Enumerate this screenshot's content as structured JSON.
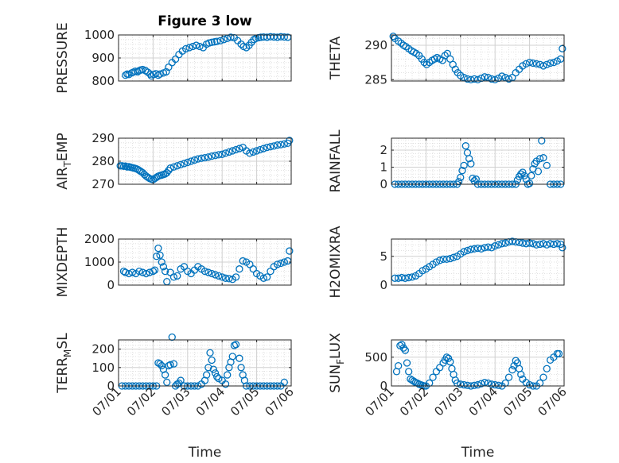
{
  "figure": {
    "title": "Figure 3 low",
    "xlabel": "Time",
    "marker_color": "#0072BD",
    "x_tick_labels": [
      "07/01",
      "07/02",
      "07/03",
      "07/04",
      "07/05",
      "07/06"
    ]
  },
  "chart_data": [
    {
      "id": "pressure",
      "type": "scatter",
      "title": "Figure 3 low",
      "ylabel": "PRESSURE",
      "ylabel_sub": "",
      "ylabel_tail": "",
      "xlabel": "",
      "xlim": [
        0,
        5
      ],
      "ylim": [
        800,
        1000
      ],
      "yticks": [
        800,
        900,
        1000
      ],
      "x": [
        0.2,
        0.25,
        0.3,
        0.38,
        0.42,
        0.48,
        0.55,
        0.6,
        0.65,
        0.7,
        0.78,
        0.85,
        0.92,
        0.95,
        1.02,
        1.08,
        1.15,
        1.2,
        1.3,
        1.38,
        1.45,
        1.55,
        1.65,
        1.75,
        1.85,
        1.95,
        2.05,
        2.15,
        2.25,
        2.35,
        2.45,
        2.55,
        2.62,
        2.7,
        2.78,
        2.85,
        2.95,
        3.05,
        3.15,
        3.25,
        3.35,
        3.45,
        3.55,
        3.62,
        3.7,
        3.78,
        3.85,
        3.92,
        3.98,
        4.05,
        4.12,
        4.2,
        4.3,
        4.4,
        4.5,
        4.6,
        4.7,
        4.8,
        4.9
      ],
      "y": [
        825,
        830,
        828,
        835,
        838,
        842,
        840,
        845,
        848,
        850,
        845,
        838,
        830,
        822,
        828,
        832,
        825,
        830,
        835,
        840,
        860,
        880,
        895,
        915,
        930,
        940,
        945,
        950,
        955,
        950,
        945,
        960,
        965,
        968,
        970,
        972,
        975,
        980,
        985,
        990,
        988,
        975,
        960,
        950,
        945,
        955,
        968,
        980,
        985,
        988,
        990,
        991,
        990,
        992,
        991,
        990,
        992,
        991,
        990
      ]
    },
    {
      "id": "theta",
      "type": "scatter",
      "ylabel": "THETA",
      "ylabel_sub": "",
      "ylabel_tail": "",
      "xlabel": "",
      "xlim": [
        0,
        5
      ],
      "ylim": [
        284.8,
        291.5
      ],
      "yticks": [
        285,
        290
      ],
      "x": [
        0.05,
        0.1,
        0.2,
        0.28,
        0.35,
        0.42,
        0.5,
        0.58,
        0.65,
        0.72,
        0.8,
        0.88,
        0.95,
        1.02,
        1.1,
        1.18,
        1.25,
        1.32,
        1.4,
        1.48,
        1.55,
        1.62,
        1.7,
        1.78,
        1.85,
        1.92,
        2.0,
        2.1,
        2.2,
        2.3,
        2.4,
        2.5,
        2.6,
        2.7,
        2.8,
        2.9,
        3.0,
        3.1,
        3.2,
        3.3,
        3.4,
        3.5,
        3.6,
        3.7,
        3.8,
        3.9,
        4.0,
        4.1,
        4.2,
        4.3,
        4.4,
        4.5,
        4.6,
        4.7,
        4.8,
        4.9,
        4.95
      ],
      "y": [
        291.3,
        291.0,
        290.6,
        290.3,
        290.0,
        289.8,
        289.5,
        289.2,
        289.0,
        288.8,
        288.5,
        288.0,
        287.5,
        287.2,
        287.5,
        287.8,
        288.0,
        288.2,
        288.0,
        287.8,
        288.5,
        288.8,
        288.0,
        287.2,
        286.5,
        286.0,
        285.6,
        285.3,
        285.1,
        285.0,
        285.1,
        285.0,
        285.2,
        285.4,
        285.3,
        285.1,
        285.0,
        285.2,
        285.5,
        285.3,
        285.1,
        285.3,
        286.0,
        286.5,
        287.0,
        287.3,
        287.5,
        287.4,
        287.3,
        287.2,
        287.0,
        287.2,
        287.4,
        287.5,
        287.7,
        288.0,
        289.5
      ]
    },
    {
      "id": "air_temp",
      "type": "scatter",
      "ylabel": "AIR",
      "ylabel_sub": "T",
      "ylabel_tail": "EMP",
      "xlabel": "",
      "xlim": [
        0,
        5
      ],
      "ylim": [
        270,
        290
      ],
      "yticks": [
        270,
        280,
        290
      ],
      "x": [
        0.05,
        0.1,
        0.15,
        0.2,
        0.25,
        0.3,
        0.35,
        0.4,
        0.45,
        0.5,
        0.55,
        0.6,
        0.65,
        0.7,
        0.75,
        0.8,
        0.85,
        0.9,
        0.95,
        1.0,
        1.05,
        1.1,
        1.15,
        1.2,
        1.25,
        1.3,
        1.35,
        1.4,
        1.45,
        1.5,
        1.6,
        1.7,
        1.8,
        1.9,
        2.0,
        2.1,
        2.2,
        2.3,
        2.4,
        2.5,
        2.6,
        2.7,
        2.8,
        2.9,
        3.0,
        3.1,
        3.2,
        3.3,
        3.4,
        3.5,
        3.6,
        3.7,
        3.8,
        3.9,
        4.0,
        4.1,
        4.2,
        4.3,
        4.4,
        4.5,
        4.6,
        4.7,
        4.8,
        4.9,
        4.95
      ],
      "y": [
        278,
        278,
        277.8,
        277.9,
        277.5,
        277.6,
        277.4,
        277.2,
        277,
        276.8,
        276.5,
        276.0,
        275.5,
        275.0,
        274.2,
        273.5,
        273.0,
        272.5,
        272.2,
        272.0,
        272.5,
        273.0,
        273.5,
        273.8,
        274.0,
        274.2,
        274.5,
        275.0,
        276.0,
        277.0,
        277.5,
        278.0,
        278.5,
        279.0,
        279.5,
        280.0,
        280.5,
        281.0,
        281.3,
        281.5,
        281.8,
        282.2,
        282.5,
        282.8,
        283.0,
        283.5,
        284.0,
        284.5,
        285.0,
        285.5,
        286.0,
        284.5,
        283.5,
        284.0,
        284.5,
        285.0,
        285.5,
        286.0,
        286.3,
        286.6,
        287.0,
        287.2,
        287.5,
        287.8,
        289.0
      ]
    },
    {
      "id": "rainfall",
      "type": "scatter",
      "ylabel": "RAINFALL",
      "ylabel_sub": "",
      "ylabel_tail": "",
      "xlabel": "",
      "xlim": [
        0,
        5
      ],
      "ylim": [
        0,
        2.7
      ],
      "yticks": [
        0,
        1,
        2
      ],
      "x": [
        0.1,
        0.2,
        0.3,
        0.4,
        0.5,
        0.6,
        0.7,
        0.8,
        0.9,
        1.0,
        1.1,
        1.2,
        1.3,
        1.4,
        1.5,
        1.6,
        1.7,
        1.8,
        1.9,
        1.95,
        2.0,
        2.05,
        2.1,
        2.15,
        2.2,
        2.25,
        2.3,
        2.35,
        2.4,
        2.45,
        2.5,
        2.6,
        2.7,
        2.8,
        2.9,
        3.0,
        3.1,
        3.2,
        3.3,
        3.4,
        3.5,
        3.6,
        3.65,
        3.7,
        3.75,
        3.8,
        3.85,
        3.9,
        3.95,
        4.0,
        4.05,
        4.1,
        4.15,
        4.2,
        4.25,
        4.3,
        4.35,
        4.4,
        4.5,
        4.6,
        4.7,
        4.8,
        4.9
      ],
      "y": [
        0,
        0,
        0,
        0,
        0,
        0,
        0,
        0,
        0,
        0,
        0,
        0,
        0,
        0,
        0,
        0,
        0,
        0,
        0,
        0.15,
        0.4,
        0.8,
        1.1,
        2.25,
        1.85,
        1.5,
        1.2,
        0.35,
        0.2,
        0.3,
        0,
        0,
        0,
        0,
        0,
        0,
        0,
        0,
        0,
        0,
        0,
        0,
        0.25,
        0.45,
        0.6,
        0.7,
        0.5,
        0.3,
        0,
        0.05,
        0.5,
        0.9,
        1.2,
        1.35,
        0.75,
        1.5,
        2.55,
        1.55,
        1.1,
        0,
        0,
        0,
        0
      ]
    },
    {
      "id": "mixdepth",
      "type": "scatter",
      "ylabel": "MIXDEPTH",
      "ylabel_sub": "",
      "ylabel_tail": "",
      "xlabel": "",
      "xlim": [
        0,
        5
      ],
      "ylim": [
        0,
        2000
      ],
      "yticks": [
        0,
        1000,
        2000
      ],
      "x": [
        0.15,
        0.2,
        0.3,
        0.4,
        0.5,
        0.6,
        0.7,
        0.8,
        0.9,
        1.0,
        1.05,
        1.1,
        1.15,
        1.2,
        1.25,
        1.3,
        1.35,
        1.4,
        1.5,
        1.6,
        1.7,
        1.8,
        1.9,
        2.0,
        2.1,
        2.2,
        2.3,
        2.4,
        2.5,
        2.6,
        2.7,
        2.8,
        2.9,
        3.0,
        3.1,
        3.2,
        3.3,
        3.4,
        3.5,
        3.6,
        3.7,
        3.8,
        3.9,
        4.0,
        4.1,
        4.2,
        4.3,
        4.4,
        4.5,
        4.6,
        4.7,
        4.8,
        4.9,
        4.95
      ],
      "y": [
        600,
        550,
        500,
        550,
        500,
        600,
        550,
        500,
        550,
        600,
        650,
        1250,
        1600,
        1300,
        1000,
        800,
        600,
        150,
        550,
        350,
        400,
        700,
        800,
        600,
        500,
        650,
        800,
        700,
        600,
        550,
        500,
        450,
        400,
        350,
        300,
        280,
        250,
        350,
        700,
        1050,
        1000,
        900,
        700,
        500,
        400,
        300,
        350,
        600,
        800,
        900,
        950,
        1000,
        1050,
        1480
      ]
    },
    {
      "id": "h2omixra",
      "type": "scatter",
      "ylabel": "H2OMIXRA",
      "ylabel_sub": "",
      "ylabel_tail": "",
      "xlabel": "",
      "xlim": [
        0,
        5
      ],
      "ylim": [
        0,
        8
      ],
      "yticks": [
        0,
        5
      ],
      "x": [
        0.1,
        0.2,
        0.3,
        0.4,
        0.5,
        0.6,
        0.7,
        0.8,
        0.9,
        1.0,
        1.1,
        1.2,
        1.3,
        1.4,
        1.5,
        1.6,
        1.7,
        1.8,
        1.9,
        2.0,
        2.1,
        2.2,
        2.3,
        2.4,
        2.5,
        2.6,
        2.7,
        2.8,
        2.9,
        3.0,
        3.1,
        3.2,
        3.3,
        3.4,
        3.5,
        3.6,
        3.7,
        3.8,
        3.9,
        4.0,
        4.1,
        4.2,
        4.3,
        4.4,
        4.5,
        4.6,
        4.7,
        4.8,
        4.9,
        4.95
      ],
      "y": [
        1.2,
        1.2,
        1.3,
        1.2,
        1.3,
        1.4,
        1.6,
        2.0,
        2.5,
        2.8,
        3.2,
        3.6,
        4.0,
        4.3,
        4.5,
        4.5,
        4.6,
        4.8,
        5.0,
        5.4,
        5.8,
        6.0,
        6.2,
        6.3,
        6.4,
        6.3,
        6.5,
        6.6,
        6.5,
        6.8,
        7.0,
        7.2,
        7.3,
        7.5,
        7.6,
        7.5,
        7.4,
        7.3,
        7.2,
        7.3,
        7.2,
        7.0,
        7.1,
        7.2,
        7.0,
        7.2,
        7.1,
        7.2,
        7.1,
        6.5
      ]
    },
    {
      "id": "terr_msl",
      "type": "scatter",
      "ylabel": "TERR",
      "ylabel_sub": "M",
      "ylabel_tail": "SL",
      "xlabel": "Time",
      "xlim": [
        0,
        5
      ],
      "ylim": [
        0,
        250
      ],
      "yticks": [
        0,
        100,
        200
      ],
      "x": [
        0.1,
        0.2,
        0.3,
        0.4,
        0.5,
        0.6,
        0.7,
        0.8,
        0.9,
        1.0,
        1.1,
        1.15,
        1.2,
        1.25,
        1.3,
        1.35,
        1.4,
        1.45,
        1.5,
        1.55,
        1.6,
        1.65,
        1.7,
        1.75,
        1.8,
        1.9,
        2.0,
        2.1,
        2.2,
        2.3,
        2.4,
        2.5,
        2.55,
        2.6,
        2.65,
        2.7,
        2.75,
        2.8,
        2.85,
        2.9,
        3.0,
        3.1,
        3.15,
        3.2,
        3.25,
        3.3,
        3.35,
        3.4,
        3.5,
        3.55,
        3.6,
        3.65,
        3.7,
        3.8,
        3.9,
        4.0,
        4.1,
        4.2,
        4.3,
        4.4,
        4.5,
        4.6,
        4.7,
        4.8
      ],
      "y": [
        0,
        0,
        0,
        0,
        0,
        0,
        0,
        0,
        0,
        0,
        0,
        125,
        120,
        110,
        90,
        60,
        20,
        110,
        115,
        265,
        120,
        0,
        10,
        15,
        30,
        0,
        0,
        0,
        0,
        0,
        10,
        30,
        60,
        100,
        180,
        140,
        90,
        70,
        50,
        40,
        30,
        10,
        60,
        100,
        130,
        160,
        220,
        225,
        150,
        100,
        60,
        30,
        0,
        0,
        0,
        0,
        0,
        0,
        0,
        0,
        0,
        0,
        0,
        20
      ]
    },
    {
      "id": "sun_flux",
      "type": "scatter",
      "ylabel": "SUN",
      "ylabel_sub": "F",
      "ylabel_tail": "LUX",
      "xlabel": "Time",
      "xlim": [
        0,
        5
      ],
      "ylim": [
        0,
        800
      ],
      "yticks": [
        0,
        500
      ],
      "x": [
        0.15,
        0.2,
        0.25,
        0.3,
        0.35,
        0.4,
        0.45,
        0.5,
        0.55,
        0.6,
        0.65,
        0.7,
        0.75,
        0.8,
        0.85,
        0.9,
        0.95,
        1.0,
        1.1,
        1.2,
        1.3,
        1.4,
        1.5,
        1.55,
        1.6,
        1.65,
        1.7,
        1.75,
        1.8,
        1.85,
        1.9,
        2.0,
        2.1,
        2.2,
        2.3,
        2.4,
        2.5,
        2.6,
        2.7,
        2.8,
        2.9,
        3.0,
        3.1,
        3.2,
        3.3,
        3.4,
        3.5,
        3.55,
        3.6,
        3.65,
        3.7,
        3.75,
        3.8,
        3.9,
        4.0,
        4.1,
        4.2,
        4.3,
        4.4,
        4.5,
        4.6,
        4.7,
        4.8,
        4.85
      ],
      "y": [
        250,
        350,
        700,
        720,
        660,
        620,
        400,
        250,
        120,
        100,
        80,
        60,
        50,
        30,
        20,
        10,
        0,
        0,
        50,
        150,
        250,
        320,
        400,
        450,
        500,
        480,
        420,
        300,
        200,
        100,
        50,
        30,
        20,
        10,
        0,
        10,
        20,
        40,
        60,
        50,
        30,
        20,
        10,
        0,
        50,
        150,
        280,
        350,
        440,
        400,
        300,
        200,
        120,
        60,
        20,
        0,
        0,
        50,
        150,
        300,
        450,
        500,
        560,
        560
      ]
    }
  ]
}
